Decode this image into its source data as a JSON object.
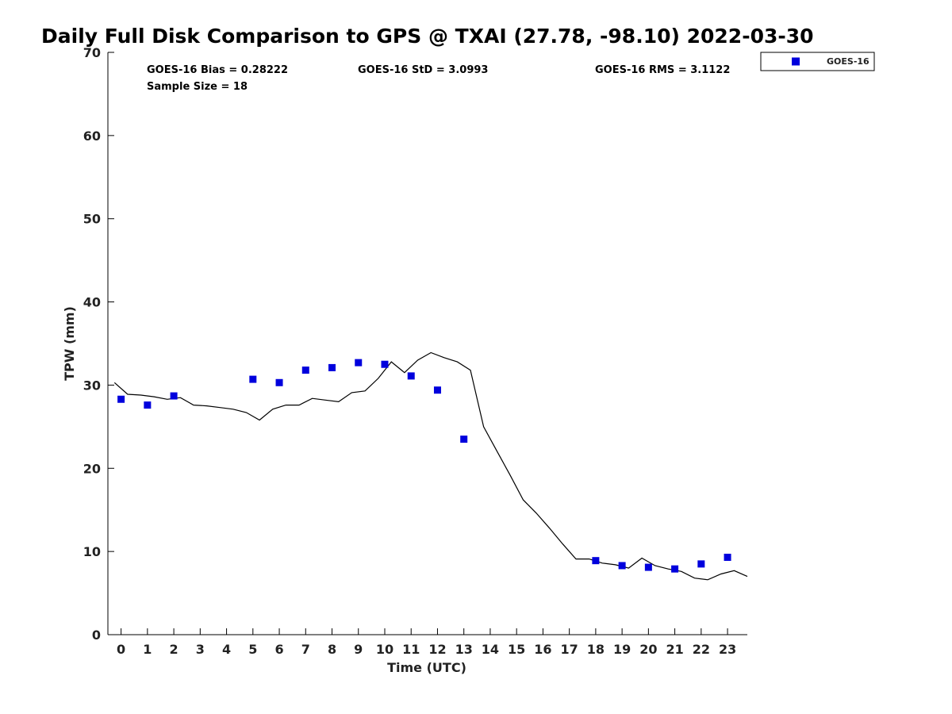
{
  "chart_data": {
    "type": "scatter",
    "title": "Daily Full Disk Comparison to GPS @ TXAI (27.78, -98.10) 2022-03-30",
    "xlabel": "Time (UTC)",
    "ylabel": "TPW (mm)",
    "xlim": [
      -0.5,
      23.75
    ],
    "ylim": [
      0,
      70
    ],
    "x_ticks": [
      0,
      1,
      2,
      3,
      4,
      5,
      6,
      7,
      8,
      9,
      10,
      11,
      12,
      13,
      14,
      15,
      16,
      17,
      18,
      19,
      20,
      21,
      22,
      23
    ],
    "y_ticks": [
      0,
      10,
      20,
      30,
      40,
      50,
      60,
      70
    ],
    "stats": {
      "bias": "GOES-16 Bias = 0.28222",
      "std": "GOES-16 StD = 3.0993",
      "rms": "GOES-16 RMS = 3.1122",
      "sample": "Sample Size = 18"
    },
    "legend": {
      "position": "top-right",
      "entries": [
        "GOES-16"
      ]
    },
    "series": [
      {
        "name": "GOES-16",
        "kind": "scatter",
        "color": "#0000dd",
        "points": [
          [
            0,
            28.3
          ],
          [
            1,
            27.6
          ],
          [
            2,
            28.7
          ],
          [
            5,
            30.7
          ],
          [
            6,
            30.3
          ],
          [
            7,
            31.8
          ],
          [
            8,
            32.1
          ],
          [
            9,
            32.7
          ],
          [
            10,
            32.5
          ],
          [
            11,
            31.1
          ],
          [
            12,
            29.4
          ],
          [
            13,
            23.5
          ],
          [
            18,
            8.9
          ],
          [
            19,
            8.3
          ],
          [
            20,
            8.1
          ],
          [
            21,
            7.9
          ],
          [
            22,
            8.5
          ],
          [
            23,
            9.3
          ]
        ]
      },
      {
        "kind": "line",
        "color": "#000000",
        "points": [
          [
            -0.25,
            30.3
          ],
          [
            0.25,
            28.9
          ],
          [
            0.75,
            28.8
          ],
          [
            1.25,
            28.6
          ],
          [
            1.75,
            28.3
          ],
          [
            2.25,
            28.5
          ],
          [
            2.75,
            27.6
          ],
          [
            3.25,
            27.5
          ],
          [
            3.75,
            27.3
          ],
          [
            4.25,
            27.1
          ],
          [
            4.75,
            26.7
          ],
          [
            5.25,
            25.8
          ],
          [
            5.75,
            27.1
          ],
          [
            6.25,
            27.6
          ],
          [
            6.75,
            27.6
          ],
          [
            7.25,
            28.4
          ],
          [
            7.75,
            28.2
          ],
          [
            8.25,
            28.0
          ],
          [
            8.75,
            29.1
          ],
          [
            9.25,
            29.3
          ],
          [
            9.75,
            30.8
          ],
          [
            10.25,
            32.8
          ],
          [
            10.75,
            31.5
          ],
          [
            11.25,
            33.0
          ],
          [
            11.75,
            33.9
          ],
          [
            12.25,
            33.3
          ],
          [
            12.75,
            32.8
          ],
          [
            13.25,
            31.8
          ],
          [
            13.75,
            25.0
          ],
          [
            14.25,
            22.1
          ],
          [
            14.75,
            19.2
          ],
          [
            15.25,
            16.2
          ],
          [
            15.75,
            14.6
          ],
          [
            16.25,
            12.8
          ],
          [
            16.75,
            10.9
          ],
          [
            17.25,
            9.1
          ],
          [
            17.75,
            9.1
          ],
          [
            18.25,
            8.6
          ],
          [
            18.75,
            8.4
          ],
          [
            19.25,
            8.0
          ],
          [
            19.75,
            9.2
          ],
          [
            20.25,
            8.3
          ],
          [
            20.75,
            7.9
          ],
          [
            21.25,
            7.6
          ],
          [
            21.75,
            6.8
          ],
          [
            22.25,
            6.6
          ],
          [
            22.75,
            7.3
          ],
          [
            23.25,
            7.7
          ],
          [
            23.75,
            7.0
          ]
        ]
      }
    ]
  }
}
